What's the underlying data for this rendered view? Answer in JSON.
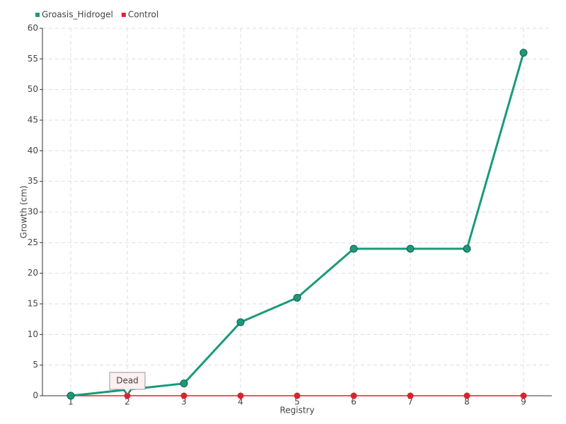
{
  "chart_data": {
    "type": "line",
    "x": [
      1,
      2,
      3,
      4,
      5,
      6,
      7,
      8,
      9
    ],
    "xlim": [
      0.5,
      9.5
    ],
    "xticks": [
      1,
      2,
      3,
      4,
      5,
      6,
      7,
      8,
      9
    ],
    "ylim": [
      0,
      60
    ],
    "yticks": [
      0,
      5,
      10,
      15,
      20,
      25,
      30,
      35,
      40,
      45,
      50,
      55,
      60
    ],
    "xlabel": "Registry",
    "ylabel": "Growth (cm)",
    "grid": true,
    "legend": "top-left",
    "series": [
      {
        "name": "Groasis_Hidrogel",
        "color": "#1a9a7a",
        "values": [
          0,
          1,
          2,
          12,
          16,
          24,
          24,
          24,
          56
        ]
      },
      {
        "name": "Control",
        "color": "#e0202e",
        "values": [
          0,
          0,
          0,
          0,
          0,
          0,
          0,
          0,
          0
        ]
      }
    ],
    "annotations": [
      {
        "label": "Dead",
        "x": 2
      }
    ]
  }
}
